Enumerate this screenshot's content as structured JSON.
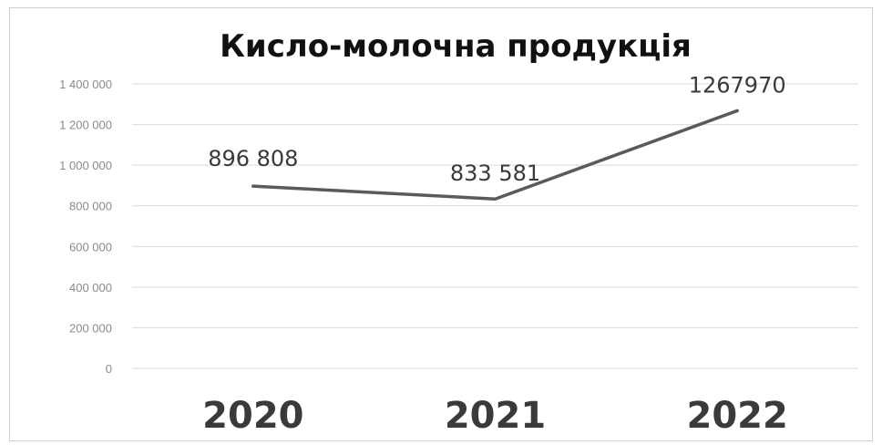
{
  "chart_data": {
    "type": "line",
    "title": "Кисло-молочна продукція",
    "categories": [
      "2020",
      "2021",
      "2022"
    ],
    "series": [
      {
        "values": [
          896808,
          833581,
          1267970
        ],
        "data_labels": [
          "896 808",
          "833 581",
          "1267970"
        ],
        "color": "#5a5a5a"
      }
    ],
    "ylim": [
      0,
      1400000
    ],
    "yticks": [
      0,
      200000,
      400000,
      600000,
      800000,
      1000000,
      1200000,
      1400000
    ],
    "ytick_labels": [
      "0",
      "200 000",
      "400 000",
      "600 000",
      "800 000",
      "1 000 000",
      "1 200 000",
      "1 400 000"
    ],
    "grid": true,
    "legend": "none",
    "xlabel": "",
    "ylabel": ""
  }
}
